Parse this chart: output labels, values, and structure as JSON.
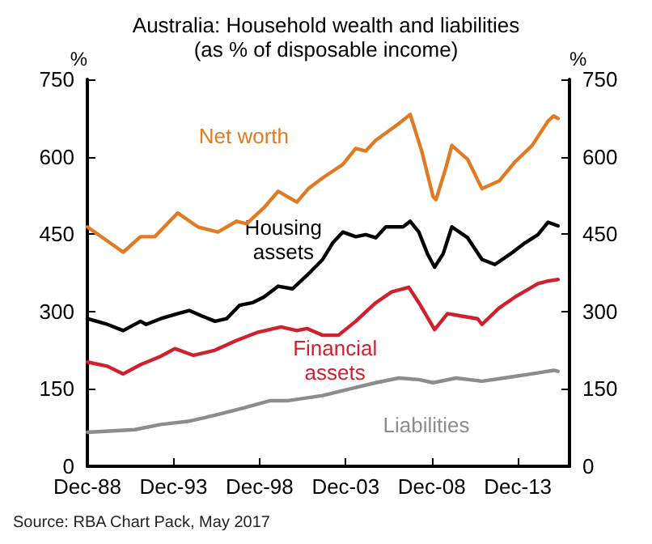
{
  "chart_data": {
    "type": "line",
    "title": "Australia: Household wealth and liabilities",
    "subtitle": "(as % of disposable income)",
    "ylabel": "%",
    "y2label": "%",
    "annotations": [
      "Source: RBA Chart Pack, May 2017"
    ],
    "xlim": [
      "1988-12",
      "2016-12"
    ],
    "xticks": [
      {
        "value": "1988-12",
        "label": "Dec-88"
      },
      {
        "value": "1993-12",
        "label": "Dec-93"
      },
      {
        "value": "1998-12",
        "label": "Dec-98"
      },
      {
        "value": "2003-12",
        "label": "Dec-03"
      },
      {
        "value": "2008-12",
        "label": "Dec-08"
      },
      {
        "value": "2013-12",
        "label": "Dec-13"
      }
    ],
    "ylim": [
      0,
      750
    ],
    "yticks": [
      0,
      150,
      300,
      450,
      600,
      750
    ],
    "y2lim": [
      0,
      750
    ],
    "y2ticks": [
      0,
      150,
      300,
      450,
      600,
      750
    ],
    "grid": false,
    "legend": false,
    "marker": "none",
    "line_style": "solid",
    "series": [
      {
        "name": "Net worth",
        "color": "#e07b24",
        "x": [
          "1988-12",
          "1989-02",
          "1991-01",
          "1992-01",
          "1992-11",
          "1994-03",
          "1995-05",
          "1996-07",
          "1997-08",
          "1998-03",
          "1999-03",
          "2000-01",
          "2001-02",
          "2001-10",
          "2002-08",
          "2003-10",
          "2004-07",
          "2005-02",
          "2005-09",
          "2007-01",
          "2007-09",
          "2008-05",
          "2009-01",
          "2009-03",
          "2009-10",
          "2010-02",
          "2011-01",
          "2011-11",
          "2012-11",
          "2013-10",
          "2014-10",
          "2015-09",
          "2016-01",
          "2016-04"
        ],
        "values": [
          464,
          460,
          415,
          445,
          445,
          491,
          464,
          454,
          475,
          470,
          501,
          533,
          512,
          538,
          559,
          585,
          616,
          611,
          632,
          664,
          682,
          611,
          522,
          517,
          580,
          622,
          595,
          538,
          553,
          590,
          622,
          669,
          679,
          674
        ]
      },
      {
        "name": "Housing\nassets",
        "color": "#000000",
        "x": [
          "1988-12",
          "1990-02",
          "1991-01",
          "1992-01",
          "1992-05",
          "1993-03",
          "1994-03",
          "1994-11",
          "1995-08",
          "1996-05",
          "1997-01",
          "1997-10",
          "1998-07",
          "1999-03",
          "2000-01",
          "2000-11",
          "2001-09",
          "2002-08",
          "2003-03",
          "2003-10",
          "2004-07",
          "2005-02",
          "2005-09",
          "2006-04",
          "2007-04",
          "2007-09",
          "2008-03",
          "2008-09",
          "2009-02",
          "2009-08",
          "2010-02",
          "2011-01",
          "2011-11",
          "2012-08",
          "2013-07",
          "2014-05",
          "2015-02",
          "2015-09",
          "2016-04"
        ],
        "values": [
          286,
          275,
          263,
          281,
          275,
          286,
          296,
          302,
          291,
          281,
          286,
          312,
          317,
          328,
          349,
          344,
          370,
          401,
          433,
          454,
          445,
          449,
          443,
          464,
          464,
          475,
          454,
          412,
          386,
          412,
          464,
          443,
          401,
          391,
          412,
          433,
          449,
          473,
          466
        ]
      },
      {
        "name": "Financial\nassets",
        "color": "#d0202e",
        "x": [
          "1988-12",
          "1990-02",
          "1991-01",
          "1992-01",
          "1993-03",
          "1994-01",
          "1995-02",
          "1996-05",
          "1997-08",
          "1998-11",
          "2000-03",
          "2001-02",
          "2001-09",
          "2002-08",
          "2003-07",
          "2004-07",
          "2005-09",
          "2006-08",
          "2007-08",
          "2008-03",
          "2009-02",
          "2009-11",
          "2010-09",
          "2011-08",
          "2011-11",
          "2012-11",
          "2013-10",
          "2015-02",
          "2015-09",
          "2016-04"
        ],
        "values": [
          202,
          194,
          179,
          197,
          213,
          228,
          215,
          225,
          244,
          260,
          270,
          263,
          267,
          254,
          254,
          281,
          317,
          338,
          347,
          317,
          265,
          296,
          291,
          286,
          275,
          307,
          328,
          354,
          359,
          362
        ]
      },
      {
        "name": "Liabilities",
        "color": "#8c8c8c",
        "x": [
          "1988-12",
          "1991-09",
          "1993-03",
          "1994-10",
          "1996-05",
          "1998-01",
          "1999-07",
          "2000-07",
          "2002-08",
          "2004-03",
          "2005-09",
          "2007-01",
          "2008-03",
          "2009-01",
          "2010-05",
          "2011-11",
          "2013-07",
          "2015-02",
          "2016-01",
          "2016-04"
        ],
        "values": [
          66,
          71,
          81,
          87,
          99,
          113,
          127,
          127,
          137,
          150,
          162,
          171,
          168,
          162,
          171,
          165,
          173,
          181,
          186,
          184
        ]
      }
    ]
  }
}
